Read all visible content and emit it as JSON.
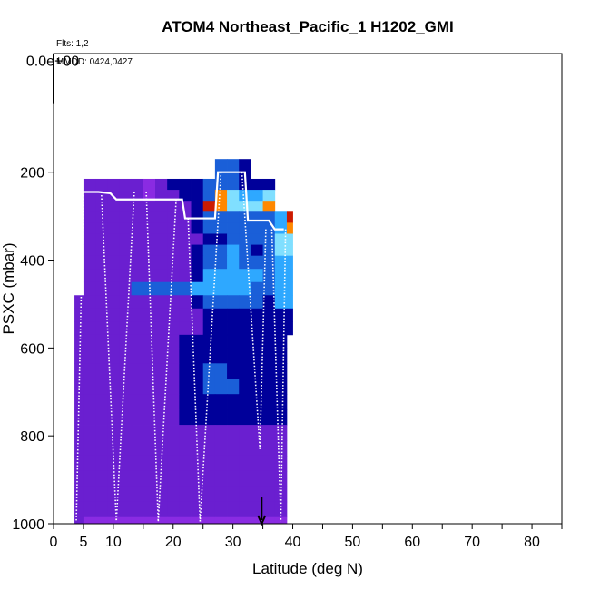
{
  "chart_data": {
    "type": "heatmap",
    "title": "ATOM4 Northeast_Pacific_1 H1202_GMI",
    "annotations": [
      "Flts: 1,2",
      "MMDD: 0424,0427"
    ],
    "xlabel": "Latitude (deg N)",
    "ylabel": "PSXC (mbar)",
    "xlim": [
      0,
      85
    ],
    "ylim": [
      1000,
      -70
    ],
    "x_ticks": [
      0,
      5,
      10,
      20,
      30,
      40,
      50,
      60,
      70,
      80
    ],
    "y_ticks": [
      200,
      400,
      600,
      800,
      1000
    ],
    "top_tick_label": "0.0e+00",
    "top_tick_value": -55,
    "lat_bin_edges": [
      3.5,
      5,
      7,
      9,
      11,
      13,
      15,
      17,
      19,
      21,
      23,
      25,
      27,
      29,
      31,
      33,
      35,
      37,
      39,
      40
    ],
    "pressure_bin_edges": [
      170,
      215,
      240,
      265,
      290,
      315,
      340,
      365,
      390,
      420,
      450,
      480,
      510,
      540,
      570,
      600,
      635,
      670,
      705,
      740,
      775,
      810,
      845,
      880,
      915,
      950,
      985,
      1000
    ],
    "cell_values": [
      [
        null,
        null,
        null,
        null,
        null,
        null,
        null,
        null,
        null,
        null,
        null,
        null,
        3,
        3,
        2,
        null,
        null,
        null,
        null
      ],
      [
        null,
        1,
        1,
        1,
        1,
        1,
        0,
        1,
        2,
        2,
        2,
        3,
        3,
        3,
        2,
        2,
        2,
        null,
        null
      ],
      [
        null,
        1,
        1,
        1,
        1,
        1,
        0,
        1,
        1,
        2,
        2,
        3,
        8,
        5,
        4,
        4,
        5,
        null,
        null
      ],
      [
        null,
        1,
        1,
        1,
        1,
        1,
        1,
        1,
        1,
        1,
        2,
        9,
        8,
        5,
        5,
        5,
        8,
        null,
        null
      ],
      [
        null,
        1,
        1,
        1,
        1,
        1,
        1,
        1,
        1,
        1,
        2,
        3,
        3,
        3,
        3,
        3,
        3,
        4,
        9
      ],
      [
        null,
        1,
        1,
        1,
        1,
        1,
        1,
        1,
        1,
        1,
        2,
        3,
        3,
        3,
        3,
        3,
        3,
        4,
        8
      ],
      [
        null,
        1,
        1,
        1,
        1,
        1,
        1,
        1,
        1,
        1,
        1,
        2,
        2,
        3,
        3,
        3,
        3,
        5,
        5
      ],
      [
        null,
        1,
        1,
        1,
        1,
        1,
        1,
        1,
        1,
        1,
        2,
        3,
        3,
        4,
        3,
        2,
        3,
        5,
        5
      ],
      [
        null,
        1,
        1,
        1,
        1,
        1,
        1,
        1,
        1,
        1,
        2,
        3,
        3,
        4,
        3,
        3,
        3,
        4,
        4
      ],
      [
        null,
        1,
        1,
        1,
        1,
        1,
        1,
        1,
        1,
        1,
        2,
        4,
        4,
        4,
        4,
        4,
        3,
        4,
        4
      ],
      [
        null,
        1,
        1,
        1,
        1,
        3,
        3,
        3,
        3,
        3,
        4,
        4,
        4,
        4,
        4,
        3,
        3,
        4,
        4
      ],
      [
        1,
        1,
        1,
        1,
        1,
        1,
        1,
        1,
        1,
        1,
        2,
        3,
        3,
        3,
        3,
        3,
        2,
        4,
        4
      ],
      [
        1,
        1,
        1,
        1,
        1,
        1,
        1,
        1,
        1,
        1,
        1,
        2,
        2,
        2,
        2,
        2,
        2,
        2,
        2
      ],
      [
        1,
        1,
        1,
        1,
        1,
        1,
        1,
        1,
        1,
        1,
        1,
        2,
        2,
        2,
        2,
        2,
        2,
        2,
        2
      ],
      [
        1,
        1,
        1,
        1,
        1,
        1,
        1,
        1,
        1,
        2,
        2,
        2,
        2,
        2,
        2,
        2,
        2,
        2,
        null
      ],
      [
        1,
        1,
        1,
        1,
        1,
        1,
        1,
        1,
        1,
        2,
        2,
        2,
        2,
        2,
        2,
        2,
        2,
        2,
        null
      ],
      [
        1,
        1,
        1,
        1,
        1,
        1,
        1,
        1,
        1,
        2,
        2,
        3,
        3,
        2,
        2,
        2,
        2,
        2,
        null
      ],
      [
        1,
        1,
        1,
        1,
        1,
        1,
        1,
        1,
        1,
        2,
        2,
        3,
        3,
        3,
        2,
        2,
        2,
        2,
        null
      ],
      [
        1,
        1,
        1,
        1,
        1,
        1,
        1,
        1,
        1,
        2,
        2,
        2,
        2,
        2,
        2,
        2,
        2,
        2,
        null
      ],
      [
        1,
        1,
        1,
        1,
        1,
        1,
        1,
        1,
        1,
        2,
        2,
        2,
        2,
        2,
        2,
        2,
        2,
        2,
        null
      ],
      [
        1,
        1,
        1,
        1,
        1,
        1,
        1,
        1,
        1,
        1,
        1,
        1,
        1,
        1,
        1,
        1,
        1,
        1,
        null
      ],
      [
        1,
        1,
        1,
        1,
        1,
        1,
        1,
        1,
        1,
        1,
        1,
        1,
        1,
        1,
        1,
        1,
        1,
        1,
        null
      ],
      [
        1,
        1,
        1,
        1,
        1,
        1,
        1,
        1,
        1,
        1,
        1,
        1,
        1,
        1,
        1,
        1,
        1,
        1,
        null
      ],
      [
        1,
        1,
        1,
        1,
        1,
        1,
        1,
        1,
        1,
        1,
        1,
        1,
        1,
        1,
        1,
        1,
        1,
        1,
        null
      ],
      [
        1,
        1,
        1,
        1,
        1,
        1,
        1,
        1,
        1,
        1,
        1,
        1,
        1,
        1,
        1,
        1,
        1,
        1,
        null
      ],
      [
        1,
        1,
        1,
        1,
        1,
        1,
        1,
        1,
        1,
        1,
        1,
        1,
        1,
        1,
        1,
        1,
        1,
        1,
        null
      ],
      [
        1,
        0,
        0,
        0,
        0,
        0,
        0,
        0,
        0,
        0,
        0,
        0,
        0,
        0,
        0,
        0,
        0,
        0,
        null
      ]
    ],
    "colors": [
      "#8a2be2",
      "#6a1fd0",
      "#00009a",
      "#1a5fd8",
      "#2ea8ff",
      "#80dfff",
      "#e0f8ff",
      "#ffe680",
      "#ff8800",
      "#cc1a00"
    ],
    "upper_envelope": [
      {
        "lat": 4.8,
        "p": 245
      },
      {
        "lat": 7.5,
        "p": 245
      },
      {
        "lat": 9.5,
        "p": 248
      },
      {
        "lat": 10.5,
        "p": 262
      },
      {
        "lat": 16,
        "p": 262
      },
      {
        "lat": 21.5,
        "p": 262
      },
      {
        "lat": 22,
        "p": 305
      },
      {
        "lat": 27,
        "p": 305
      },
      {
        "lat": 27.5,
        "p": 200
      },
      {
        "lat": 32,
        "p": 200
      },
      {
        "lat": 32.5,
        "p": 310
      },
      {
        "lat": 36,
        "p": 310
      },
      {
        "lat": 37,
        "p": 330
      },
      {
        "lat": 38.5,
        "p": 330
      }
    ],
    "profiles": [
      {
        "lat_top": 5.0,
        "lat_bottom": 3.8,
        "p_top": 245,
        "p_bottom": 995
      },
      {
        "lat_top": 8.0,
        "lat_bottom": 10.5,
        "p_top": 245,
        "p_bottom": 995
      },
      {
        "lat_top": 13.5,
        "lat_bottom": 10.5,
        "p_top": 245,
        "p_bottom": 995
      },
      {
        "lat_top": 15.5,
        "lat_bottom": 17.5,
        "p_top": 245,
        "p_bottom": 995
      },
      {
        "lat_top": 20.5,
        "lat_bottom": 17.5,
        "p_top": 262,
        "p_bottom": 995
      },
      {
        "lat_top": 22.5,
        "lat_bottom": 24.5,
        "p_top": 305,
        "p_bottom": 995
      },
      {
        "lat_top": 28.0,
        "lat_bottom": 24.5,
        "p_top": 200,
        "p_bottom": 995
      },
      {
        "lat_top": 31.5,
        "lat_bottom": 34.5,
        "p_top": 200,
        "p_bottom": 830
      },
      {
        "lat_top": 35.5,
        "lat_bottom": 34.5,
        "p_top": 330,
        "p_bottom": 830
      },
      {
        "lat_top": 36.5,
        "lat_bottom": 38.0,
        "p_top": 330,
        "p_bottom": 995
      },
      {
        "lat_top": 38.8,
        "lat_bottom": 38.0,
        "p_top": 330,
        "p_bottom": 995
      }
    ],
    "marker_latitude": 34.8,
    "marker_pressure_range": [
      940,
      1000
    ],
    "top_marker_latitude": 0,
    "top_marker_pressure_range": [
      -70,
      45
    ]
  }
}
